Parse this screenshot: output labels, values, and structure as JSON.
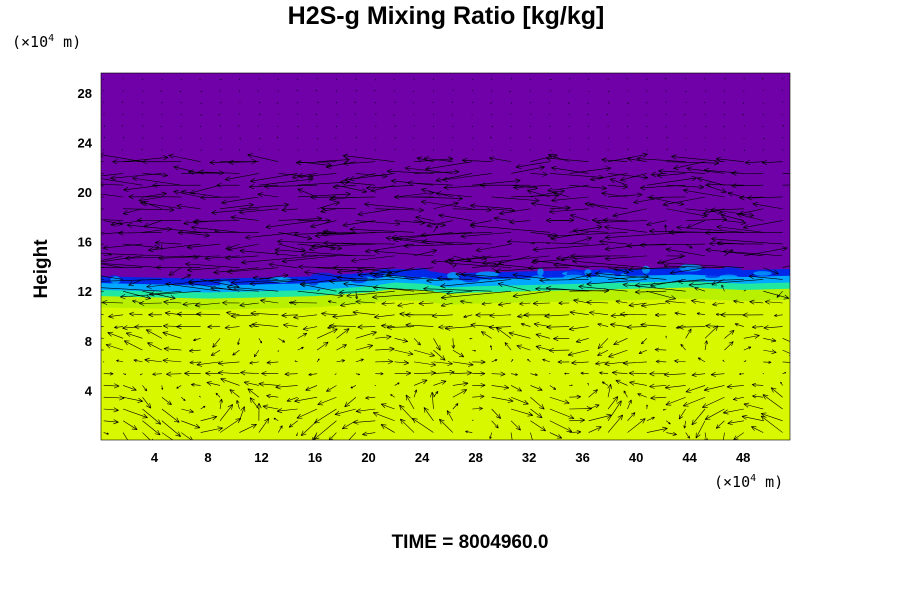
{
  "header": {
    "title": "H2S-g Mixing Ratio [kg/kg]",
    "y_unit": "(×10",
    "x_unit": "(×10",
    "unit_exp": "4",
    "unit_tail": " m)"
  },
  "footer": {
    "time_label": "TIME = 8004960.0"
  },
  "chart_data": {
    "type": "heatmap",
    "title": "H2S-g Mixing Ratio [kg/kg]",
    "xlabel": "",
    "ylabel": "Height",
    "xlim": [
      0,
      51.5
    ],
    "ylim": [
      0,
      29.6
    ],
    "x_ticks": [
      4,
      8,
      12,
      16,
      20,
      24,
      28,
      32,
      36,
      40,
      44,
      48
    ],
    "y_ticks": [
      4,
      8,
      12,
      16,
      20,
      24,
      28
    ],
    "grid": false,
    "legend": "none",
    "colors": {
      "low": "#7000a8",
      "edge": "#0028e8",
      "mid": "#00a8ff",
      "transition": "#20e8a0",
      "high_light": "#b8f000",
      "high": "#d8f800"
    },
    "interface_height_profile": [
      {
        "x": 0,
        "y": 12.3
      },
      {
        "x": 4,
        "y": 12.2
      },
      {
        "x": 8,
        "y": 12.1
      },
      {
        "x": 12,
        "y": 12.2
      },
      {
        "x": 16,
        "y": 12.3
      },
      {
        "x": 20,
        "y": 12.6
      },
      {
        "x": 22,
        "y": 12.9
      },
      {
        "x": 24,
        "y": 12.8
      },
      {
        "x": 26,
        "y": 12.5
      },
      {
        "x": 28,
        "y": 12.6
      },
      {
        "x": 32,
        "y": 12.7
      },
      {
        "x": 36,
        "y": 12.8
      },
      {
        "x": 40,
        "y": 12.9
      },
      {
        "x": 44,
        "y": 13.0
      },
      {
        "x": 48,
        "y": 12.8
      },
      {
        "x": 51.5,
        "y": 12.9
      }
    ],
    "wind_vectors": "velocity arrows overlaid across domain; strongest between heights 9 and 22"
  }
}
